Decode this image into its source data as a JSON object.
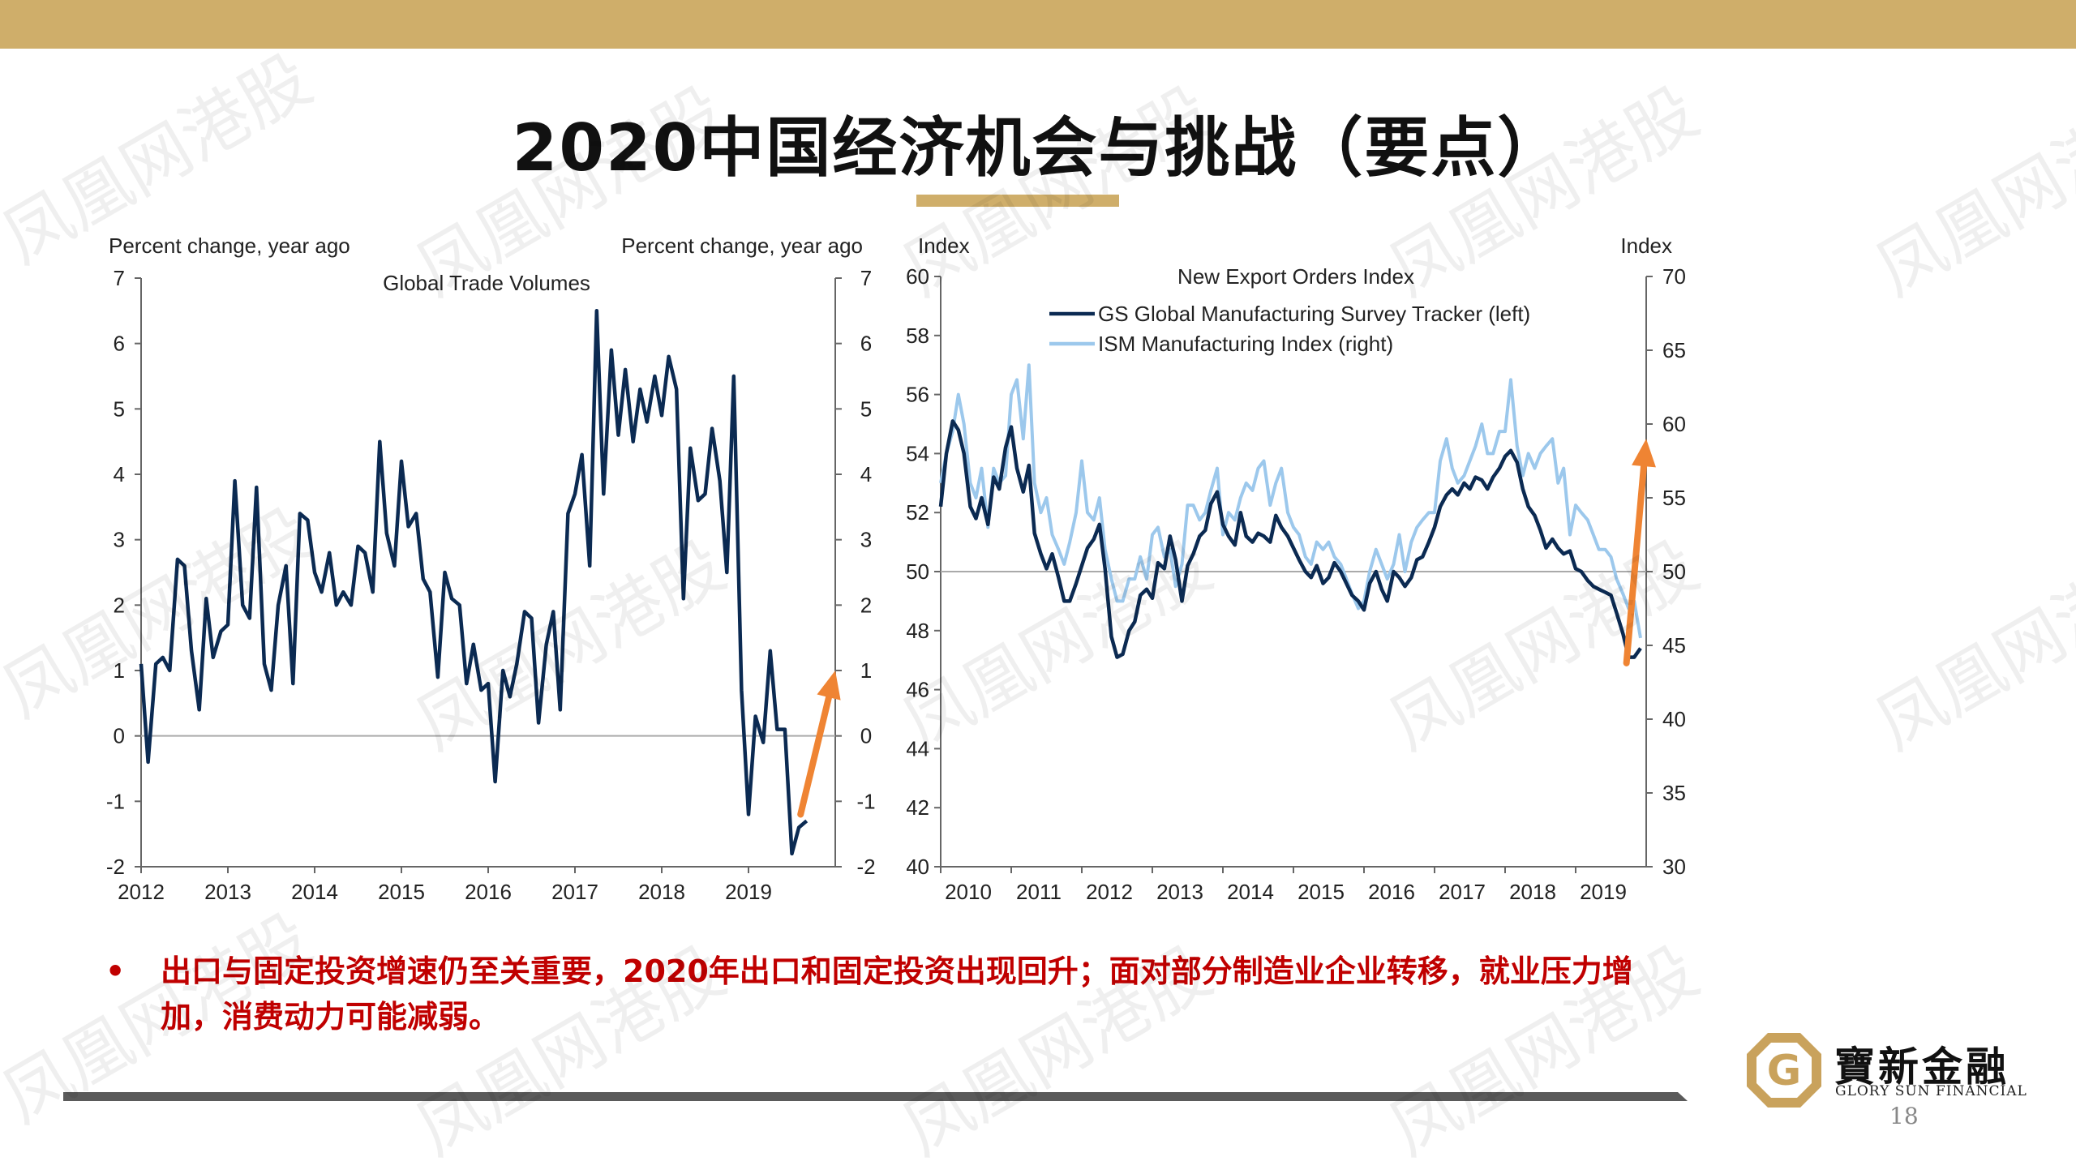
{
  "slide": {
    "title": "2020中国经济机会与挑战（要点）",
    "bullet_symbol": "•",
    "bullet_text": "出口与固定投资增速仍至关重要，2020年出口和固定投资出现回升；面对部分制造业企业转移，就业压力增加，消费动力可能减弱。",
    "page_number": "18",
    "watermark_text": "凤凰网港股"
  },
  "logo": {
    "name_cn": "寶新金融",
    "name_en": "GLORY SUN FINANCIAL",
    "mark_letter": "G"
  },
  "colors": {
    "gold": "#cfae6a",
    "navy": "#0b2a52",
    "light_blue": "#9cc8ec",
    "arrow_orange": "#ef8433",
    "bullet_red": "#c00000"
  },
  "chart_data": [
    {
      "type": "line",
      "title": "Global Trade Volumes",
      "ylabel_left": "Percent change, year ago",
      "ylabel_right": "Percent change, year ago",
      "ylim": [
        -2,
        7
      ],
      "yticks": [
        -2,
        -1,
        0,
        1,
        2,
        3,
        4,
        5,
        6,
        7
      ],
      "xlim": [
        2012.0,
        2020.0
      ],
      "xticks": [
        2012,
        2013,
        2014,
        2015,
        2016,
        2017,
        2018,
        2019
      ],
      "xtick_labels": [
        "2012",
        "2013",
        "2014",
        "2015",
        "2016",
        "2017",
        "2018",
        "2019"
      ],
      "reference_line": 0,
      "grid": false,
      "series": [
        {
          "color": "#0b2a52",
          "x": [
            2012.0,
            2012.08,
            2012.17,
            2012.25,
            2012.33,
            2012.42,
            2012.5,
            2012.58,
            2012.67,
            2012.75,
            2012.83,
            2012.92,
            2013.0,
            2013.08,
            2013.17,
            2013.25,
            2013.33,
            2013.42,
            2013.5,
            2013.58,
            2013.67,
            2013.75,
            2013.83,
            2013.92,
            2014.0,
            2014.08,
            2014.17,
            2014.25,
            2014.33,
            2014.42,
            2014.5,
            2014.58,
            2014.67,
            2014.75,
            2014.83,
            2014.92,
            2015.0,
            2015.08,
            2015.17,
            2015.25,
            2015.33,
            2015.42,
            2015.5,
            2015.58,
            2015.67,
            2015.75,
            2015.83,
            2015.92,
            2016.0,
            2016.08,
            2016.17,
            2016.25,
            2016.33,
            2016.42,
            2016.5,
            2016.58,
            2016.67,
            2016.75,
            2016.83,
            2016.92,
            2017.0,
            2017.08,
            2017.17,
            2017.25,
            2017.33,
            2017.42,
            2017.5,
            2017.58,
            2017.67,
            2017.75,
            2017.83,
            2017.92,
            2018.0,
            2018.08,
            2018.17,
            2018.25,
            2018.33,
            2018.42,
            2018.5,
            2018.58,
            2018.67,
            2018.75,
            2018.83,
            2018.92,
            2019.0,
            2019.08,
            2019.17,
            2019.25,
            2019.33,
            2019.42,
            2019.5,
            2019.58,
            2019.67
          ],
          "values": [
            1.1,
            -0.4,
            1.1,
            1.2,
            1.0,
            2.7,
            2.6,
            1.3,
            0.4,
            2.1,
            1.2,
            1.6,
            1.7,
            3.9,
            2.0,
            1.8,
            3.8,
            1.1,
            0.7,
            2.0,
            2.6,
            0.8,
            3.4,
            3.3,
            2.5,
            2.2,
            2.8,
            2.0,
            2.2,
            2.0,
            2.9,
            2.8,
            2.2,
            4.5,
            3.1,
            2.6,
            4.2,
            3.2,
            3.4,
            2.4,
            2.2,
            0.9,
            2.5,
            2.1,
            2.0,
            0.8,
            1.4,
            0.7,
            0.8,
            -0.7,
            1.0,
            0.6,
            1.1,
            1.9,
            1.8,
            0.2,
            1.4,
            1.9,
            0.4,
            3.4,
            3.7,
            4.3,
            2.6,
            6.5,
            3.7,
            5.9,
            4.6,
            5.6,
            4.5,
            5.3,
            4.8,
            5.5,
            4.9,
            5.8,
            5.3,
            2.1,
            4.4,
            3.6,
            3.7,
            4.7,
            3.9,
            2.5,
            5.5,
            0.7,
            -1.2,
            0.3,
            -0.1,
            1.3,
            0.1,
            0.1,
            -1.8,
            -1.4,
            -1.3
          ]
        }
      ],
      "annotation_arrow": {
        "from": [
          2019.6,
          -1.2
        ],
        "to": [
          2020.0,
          1.0
        ],
        "color": "#ef8433"
      }
    },
    {
      "type": "line",
      "title": "New Export Orders Index",
      "ylabel_left": "Index",
      "ylabel_right": "Index",
      "ylim_left": [
        40,
        60
      ],
      "yticks_left": [
        40,
        42,
        44,
        46,
        48,
        50,
        52,
        54,
        56,
        58,
        60
      ],
      "ylim_right": [
        30,
        70
      ],
      "yticks_right": [
        30,
        35,
        40,
        45,
        50,
        55,
        60,
        65,
        70
      ],
      "xlim": [
        2010.0,
        2020.0
      ],
      "xticks": [
        2010,
        2011,
        2012,
        2013,
        2014,
        2015,
        2016,
        2017,
        2018,
        2019
      ],
      "xtick_labels": [
        "2010",
        "2011",
        "2012",
        "2013",
        "2014",
        "2015",
        "2016",
        "2017",
        "2018",
        "2019"
      ],
      "reference_line_left": 50,
      "grid": false,
      "legend_position": "top-center",
      "series": [
        {
          "name": "GS Global Manufacturing Survey Tracker (left)",
          "axis": "left",
          "color": "#0b2a52",
          "x": [
            2010.0,
            2010.08,
            2010.17,
            2010.25,
            2010.33,
            2010.42,
            2010.5,
            2010.58,
            2010.67,
            2010.75,
            2010.83,
            2010.92,
            2011.0,
            2011.08,
            2011.17,
            2011.25,
            2011.33,
            2011.42,
            2011.5,
            2011.58,
            2011.67,
            2011.75,
            2011.83,
            2011.92,
            2012.0,
            2012.08,
            2012.17,
            2012.25,
            2012.33,
            2012.42,
            2012.5,
            2012.58,
            2012.67,
            2012.75,
            2012.83,
            2012.92,
            2013.0,
            2013.08,
            2013.17,
            2013.25,
            2013.33,
            2013.42,
            2013.5,
            2013.58,
            2013.67,
            2013.75,
            2013.83,
            2013.92,
            2014.0,
            2014.08,
            2014.17,
            2014.25,
            2014.33,
            2014.42,
            2014.5,
            2014.58,
            2014.67,
            2014.75,
            2014.83,
            2014.92,
            2015.0,
            2015.08,
            2015.17,
            2015.25,
            2015.33,
            2015.42,
            2015.5,
            2015.58,
            2015.67,
            2015.75,
            2015.83,
            2015.92,
            2016.0,
            2016.08,
            2016.17,
            2016.25,
            2016.33,
            2016.42,
            2016.5,
            2016.58,
            2016.67,
            2016.75,
            2016.83,
            2016.92,
            2017.0,
            2017.08,
            2017.17,
            2017.25,
            2017.33,
            2017.42,
            2017.5,
            2017.58,
            2017.67,
            2017.75,
            2017.83,
            2017.92,
            2018.0,
            2018.08,
            2018.17,
            2018.25,
            2018.33,
            2018.42,
            2018.5,
            2018.58,
            2018.67,
            2018.75,
            2018.83,
            2018.92,
            2019.0,
            2019.08,
            2019.17,
            2019.25,
            2019.33,
            2019.42,
            2019.5,
            2019.58,
            2019.67,
            2019.75,
            2019.83,
            2019.92
          ],
          "values": [
            52.2,
            54.0,
            55.1,
            54.8,
            54.0,
            52.2,
            51.8,
            52.5,
            51.6,
            53.2,
            52.8,
            54.2,
            54.9,
            53.5,
            52.7,
            53.6,
            51.3,
            50.6,
            50.1,
            50.6,
            49.8,
            49.0,
            49.0,
            49.6,
            50.2,
            50.8,
            51.1,
            51.6,
            50.1,
            47.8,
            47.1,
            47.2,
            48.0,
            48.3,
            49.2,
            49.4,
            49.1,
            50.3,
            50.1,
            51.2,
            50.4,
            49.0,
            50.2,
            50.6,
            51.2,
            51.4,
            52.3,
            52.7,
            51.6,
            51.2,
            50.9,
            52.0,
            51.2,
            51.0,
            51.3,
            51.2,
            51.0,
            51.9,
            51.5,
            51.2,
            50.8,
            50.4,
            50.0,
            49.8,
            50.2,
            49.6,
            49.8,
            50.3,
            50.0,
            49.6,
            49.2,
            49.0,
            48.7,
            49.6,
            50.0,
            49.4,
            49.0,
            50.0,
            49.8,
            49.5,
            49.8,
            50.4,
            50.5,
            51.0,
            51.5,
            52.2,
            52.6,
            52.8,
            52.6,
            53.0,
            52.8,
            53.2,
            53.1,
            52.8,
            53.2,
            53.5,
            53.9,
            54.1,
            53.7,
            52.8,
            52.2,
            51.9,
            51.4,
            50.8,
            51.1,
            50.8,
            50.6,
            50.7,
            50.1,
            50.0,
            49.7,
            49.5,
            49.4,
            49.3,
            49.2,
            48.6,
            47.9,
            47.1,
            47.1,
            47.4
          ]
        },
        {
          "name": "ISM Manufacturing Index (right)",
          "axis": "right",
          "color": "#9cc8ec",
          "x": [
            2010.0,
            2010.08,
            2010.17,
            2010.25,
            2010.33,
            2010.42,
            2010.5,
            2010.58,
            2010.67,
            2010.75,
            2010.83,
            2010.92,
            2011.0,
            2011.08,
            2011.17,
            2011.25,
            2011.33,
            2011.42,
            2011.5,
            2011.58,
            2011.67,
            2011.75,
            2011.83,
            2011.92,
            2012.0,
            2012.08,
            2012.17,
            2012.25,
            2012.33,
            2012.42,
            2012.5,
            2012.58,
            2012.67,
            2012.75,
            2012.83,
            2012.92,
            2013.0,
            2013.08,
            2013.17,
            2013.25,
            2013.33,
            2013.42,
            2013.5,
            2013.58,
            2013.67,
            2013.75,
            2013.83,
            2013.92,
            2014.0,
            2014.08,
            2014.17,
            2014.25,
            2014.33,
            2014.42,
            2014.5,
            2014.58,
            2014.67,
            2014.75,
            2014.83,
            2014.92,
            2015.0,
            2015.08,
            2015.17,
            2015.25,
            2015.33,
            2015.42,
            2015.5,
            2015.58,
            2015.67,
            2015.75,
            2015.83,
            2015.92,
            2016.0,
            2016.08,
            2016.17,
            2016.25,
            2016.33,
            2016.42,
            2016.5,
            2016.58,
            2016.67,
            2016.75,
            2016.83,
            2016.92,
            2017.0,
            2017.08,
            2017.17,
            2017.25,
            2017.33,
            2017.42,
            2017.5,
            2017.58,
            2017.67,
            2017.75,
            2017.83,
            2017.92,
            2018.0,
            2018.08,
            2018.17,
            2018.25,
            2018.33,
            2018.42,
            2018.5,
            2018.58,
            2018.67,
            2018.75,
            2018.83,
            2018.92,
            2019.0,
            2019.08,
            2019.17,
            2019.25,
            2019.33,
            2019.42,
            2019.5,
            2019.58,
            2019.67,
            2019.75,
            2019.83,
            2019.92
          ],
          "values": [
            56.0,
            58.0,
            59.5,
            62.0,
            60.0,
            56.0,
            55.0,
            57.0,
            53.0,
            57.0,
            56.0,
            56.5,
            62.0,
            63.0,
            59.0,
            64.0,
            56.0,
            54.0,
            55.0,
            52.5,
            51.5,
            50.5,
            52.0,
            54.0,
            57.5,
            54.0,
            53.5,
            55.0,
            51.5,
            49.5,
            48.0,
            48.0,
            49.5,
            49.5,
            51.0,
            49.5,
            52.5,
            53.0,
            51.0,
            51.5,
            49.0,
            50.5,
            54.5,
            54.5,
            53.5,
            54.0,
            55.5,
            57.0,
            52.5,
            54.0,
            53.5,
            55.0,
            56.0,
            55.5,
            57.0,
            57.5,
            54.5,
            56.0,
            57.0,
            54.0,
            53.0,
            52.5,
            51.0,
            50.5,
            52.0,
            51.5,
            52.0,
            51.0,
            50.5,
            49.5,
            48.5,
            47.5,
            48.0,
            50.0,
            51.5,
            50.5,
            49.5,
            50.5,
            52.5,
            50.0,
            52.0,
            53.0,
            53.5,
            54.0,
            54.0,
            57.5,
            59.0,
            57.0,
            56.0,
            56.5,
            57.5,
            58.5,
            60.0,
            58.0,
            58.0,
            59.5,
            59.5,
            63.0,
            58.5,
            56.5,
            58.0,
            57.0,
            58.0,
            58.5,
            59.0,
            56.0,
            57.0,
            52.5,
            54.5,
            54.0,
            53.5,
            52.5,
            51.5,
            51.5,
            51.0,
            49.5,
            48.5,
            47.5,
            48.0,
            45.5
          ]
        }
      ],
      "annotation_arrow": {
        "from": [
          2019.72,
          46.9
        ],
        "to": [
          2020.0,
          54.5
        ],
        "color": "#ef8433"
      }
    }
  ]
}
